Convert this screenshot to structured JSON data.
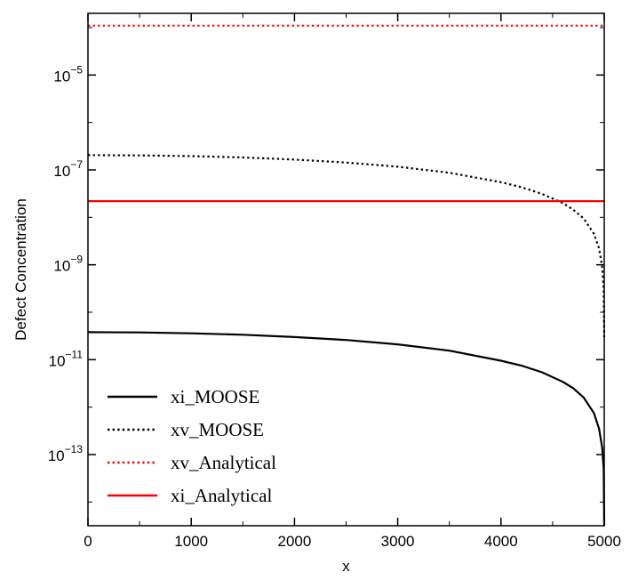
{
  "chart_data": {
    "type": "line",
    "title": "",
    "xlabel": "x",
    "ylabel": "Defect Concentration",
    "xlim": [
      0,
      5000
    ],
    "ylim_log10": [
      -14.5,
      -3.7
    ],
    "y_scale": "log",
    "grid": false,
    "legend_position": "lower-left",
    "x_ticks": [
      "0",
      "1000",
      "2000",
      "3000",
      "4000",
      "5000"
    ],
    "x_tick_values": [
      0,
      1000,
      2000,
      3000,
      4000,
      5000
    ],
    "y_ticks": [
      {
        "value_log10": -5,
        "base": "10",
        "exp": "−5"
      },
      {
        "value_log10": -7,
        "base": "10",
        "exp": "−7"
      },
      {
        "value_log10": -9,
        "base": "10",
        "exp": "−9"
      },
      {
        "value_log10": -11,
        "base": "10",
        "exp": "−11"
      },
      {
        "value_log10": -13,
        "base": "10",
        "exp": "−13"
      }
    ],
    "series": [
      {
        "name": "xi_MOOSE",
        "color": "#000000",
        "style": "solid",
        "x": [
          0,
          500,
          1000,
          1500,
          2000,
          2500,
          3000,
          3500,
          4000,
          4200,
          4400,
          4600,
          4700,
          4800,
          4900,
          4950,
          4980,
          4995,
          5000
        ],
        "y": [
          3.8e-11,
          3.75e-11,
          3.6e-11,
          3.35e-11,
          3e-11,
          2.6e-11,
          2.1e-11,
          1.55e-11,
          9.5e-12,
          7.5e-12,
          5.4e-12,
          3.4e-12,
          2.5e-12,
          1.6e-12,
          7.5e-13,
          3.5e-13,
          1.4e-13,
          5e-14,
          1e-15
        ]
      },
      {
        "name": "xv_MOOSE",
        "color": "#000000",
        "style": "dotted",
        "x": [
          0,
          500,
          1000,
          1500,
          2000,
          2500,
          3000,
          3500,
          4000,
          4200,
          4400,
          4600,
          4700,
          4800,
          4900,
          4950,
          4980,
          4995,
          5000
        ],
        "y": [
          2.05e-07,
          2.02e-07,
          1.95e-07,
          1.83e-07,
          1.65e-07,
          1.43e-07,
          1.17e-07,
          8.7e-08,
          5.5e-08,
          4.3e-08,
          3.1e-08,
          2e-08,
          1.45e-08,
          9.5e-09,
          4.5e-09,
          2.2e-09,
          9e-10,
          3e-10,
          3e-11
        ]
      },
      {
        "name": "xv_Analytical",
        "color": "#ff0000",
        "style": "dotted",
        "x": [
          0,
          5000
        ],
        "y": [
          0.00011,
          0.00011
        ]
      },
      {
        "name": "xi_Analytical",
        "color": "#ff0000",
        "style": "solid",
        "x": [
          0,
          5000
        ],
        "y": [
          2.2e-08,
          2.2e-08
        ]
      }
    ]
  }
}
